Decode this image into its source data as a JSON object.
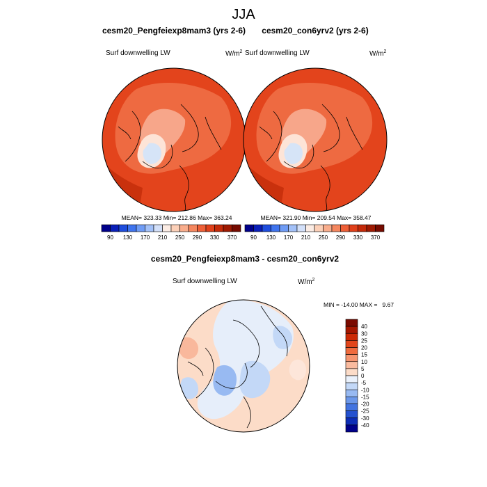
{
  "chart_data": [
    {
      "type": "map",
      "projection": "north polar stereographic",
      "title": "cesm20_Pengfeiexp8mam3 (yrs 2-6)",
      "variable": "Surf downwelling LW",
      "units": "W/m",
      "units_exp": "2",
      "stats": {
        "mean": "323.33",
        "min": "212.86",
        "max": "363.24"
      },
      "stats_text": "MEAN= 323.33  Min= 212.86  Max= 363.24"
    },
    {
      "type": "map",
      "projection": "north polar stereographic",
      "title": "cesm20_con6yrv2 (yrs 2-6)",
      "variable": "Surf downwelling LW",
      "units": "W/m",
      "units_exp": "2",
      "stats": {
        "mean": "321.90",
        "min": "209.54",
        "max": "358.47"
      },
      "stats_text": "MEAN= 321.90  Min= 209.54  Max= 358.47"
    },
    {
      "type": "map",
      "projection": "north polar stereographic",
      "title": "cesm20_Pengfeiexp8mam3 - cesm20_con6yrv2",
      "variable": "Surf downwelling LW",
      "units": "W/m",
      "units_exp": "2",
      "stats": {
        "min": "-14.00",
        "max": "9.67"
      },
      "stats_text": "MIN = -14.00 MAX =   9.67"
    }
  ],
  "suptitle": "JJA",
  "abs_colorbar": {
    "labels": [
      "90",
      "130",
      "170",
      "210",
      "250",
      "290",
      "330",
      "370"
    ],
    "colors": [
      "#00008a",
      "#0a1fb8",
      "#1e4ddd",
      "#3f74ee",
      "#6f9cf5",
      "#a3c1f8",
      "#d3e0f9",
      "#fbece4",
      "#fcd0b8",
      "#f9ad8c",
      "#f5875f",
      "#ee5f37",
      "#e0401a",
      "#c42a09",
      "#9e1a02",
      "#760b00"
    ]
  },
  "diff_colorbar": {
    "labels": [
      "40",
      "30",
      "25",
      "20",
      "15",
      "10",
      "5",
      "0",
      "-5",
      "-10",
      "-15",
      "-20",
      "-25",
      "-30",
      "-40"
    ],
    "colors": [
      "#7a0a00",
      "#a51700",
      "#cc2a05",
      "#e2461b",
      "#ef6b3e",
      "#f59570",
      "#fabb9f",
      "#fcdcc8",
      "#eaf1fb",
      "#c3d8f7",
      "#98baf2",
      "#6c98ea",
      "#4374e0",
      "#2451cf",
      "#0d2db6",
      "#00008a"
    ]
  }
}
